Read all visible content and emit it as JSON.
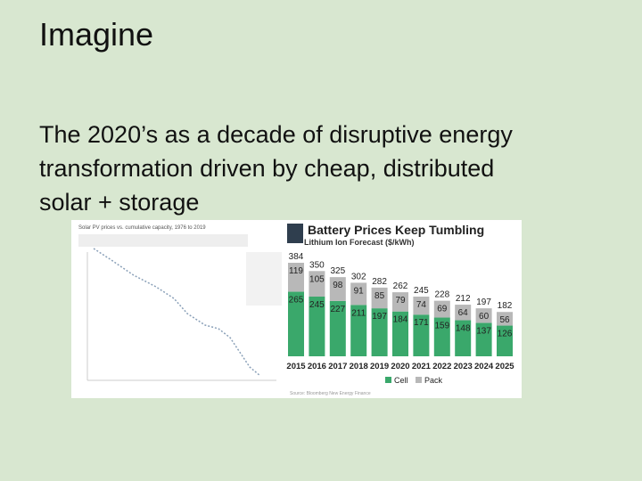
{
  "slide": {
    "title": "Imagine",
    "body": [
      "The 2020’s as a decade of disruptive energy",
      "transformation driven by cheap, distributed",
      "solar + storage"
    ],
    "left_figure_title": "Solar PV prices vs. cumulative capacity, 1976 to 2019"
  },
  "chart_data": {
    "type": "stacked-bar",
    "title": "Battery Prices Keep Tumbling",
    "subtitle": "Lithium Ion Forecast ($/kWh)",
    "categories": [
      "2015",
      "2016",
      "2017",
      "2018",
      "2019",
      "2020",
      "2021",
      "2022",
      "2023",
      "2024",
      "2025"
    ],
    "series": [
      {
        "name": "Cell",
        "color": "#3aa86b",
        "values": [
          265,
          245,
          227,
          211,
          197,
          184,
          171,
          159,
          148,
          137,
          126
        ]
      },
      {
        "name": "Pack",
        "color": "#b8b8b8",
        "values": [
          119,
          105,
          98,
          91,
          85,
          79,
          74,
          69,
          64,
          60,
          56
        ]
      }
    ],
    "totals": [
      384,
      350,
      325,
      302,
      282,
      262,
      245,
      228,
      212,
      197,
      182
    ],
    "source": "Source: Bloomberg New Energy Finance"
  }
}
